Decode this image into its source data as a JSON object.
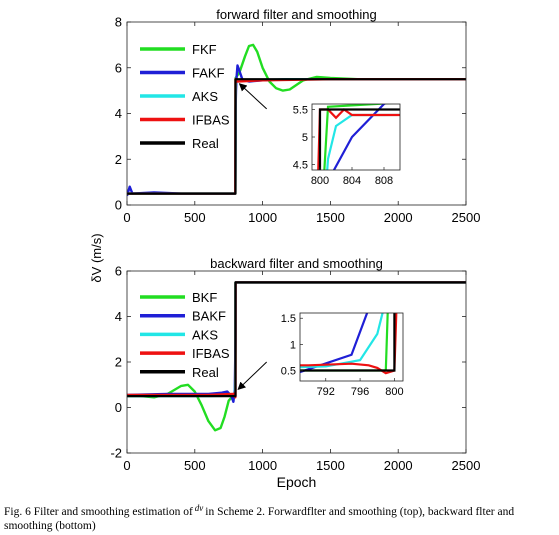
{
  "ylabel_shared": "δV (m/s)",
  "caption": {
    "before_symbol": "Fig. 6 Filter and smoothing estimation of",
    "symbol": "dv",
    "after_symbol": "in Scheme 2. Forwardflter and smoothing (top), backward flter and smoothing (bottom)"
  },
  "colors": {
    "filter": "#22dd22",
    "adaptive": "#1f1fd6",
    "smoother": "#22e6e6",
    "ifbas": "#ee1111",
    "real": "#000000"
  },
  "chart_data": [
    {
      "type": "line",
      "title": "forward filter and smoothing",
      "xlabel": "",
      "ylabel": "δV (m/s)",
      "xlim": [
        0,
        2500
      ],
      "ylim": [
        0,
        8
      ],
      "xticks": [
        "0",
        "500",
        "1000",
        "1500",
        "2000",
        "2500"
      ],
      "yticks": [
        "0",
        "2",
        "4",
        "6",
        "8"
      ],
      "grid": false,
      "legend": "top-left",
      "series": [
        {
          "name": "FKF",
          "color": "#22dd22",
          "x": [
            0,
            200,
            400,
            600,
            780,
            799,
            801,
            830,
            870,
            900,
            930,
            960,
            1000,
            1050,
            1100,
            1150,
            1200,
            1250,
            1300,
            1400,
            1500,
            1700,
            2000,
            2300,
            2500
          ],
          "y": [
            0.5,
            0.5,
            0.5,
            0.5,
            0.5,
            0.5,
            5.55,
            5.8,
            6.5,
            6.95,
            7.0,
            6.7,
            6.0,
            5.4,
            5.1,
            5.0,
            5.05,
            5.25,
            5.45,
            5.6,
            5.55,
            5.5,
            5.5,
            5.5,
            5.5
          ]
        },
        {
          "name": "FAKF",
          "color": "#1f1fd6",
          "x": [
            0,
            20,
            40,
            200,
            400,
            600,
            799,
            801,
            804,
            808,
            815,
            850,
            900,
            1000,
            1200,
            1500,
            2000,
            2500
          ],
          "y": [
            0.4,
            0.8,
            0.5,
            0.55,
            0.5,
            0.5,
            0.5,
            4.2,
            5.0,
            5.6,
            6.1,
            5.5,
            5.4,
            5.45,
            5.5,
            5.5,
            5.5,
            5.5
          ]
        },
        {
          "name": "AKS",
          "color": "#22e6e6",
          "x": [
            0,
            200,
            400,
            600,
            799,
            801,
            802,
            804,
            808,
            900,
            1200,
            1500,
            2000,
            2500
          ],
          "y": [
            0.5,
            0.5,
            0.5,
            0.5,
            0.5,
            4.6,
            5.2,
            5.4,
            5.4,
            5.45,
            5.5,
            5.5,
            5.5,
            5.5
          ]
        },
        {
          "name": "IFBAS",
          "color": "#ee1111",
          "x": [
            0,
            200,
            400,
            600,
            799,
            800,
            801,
            802,
            803,
            804,
            808,
            1000,
            1500,
            2000,
            2500
          ],
          "y": [
            0.5,
            0.5,
            0.5,
            0.5,
            0.5,
            5.5,
            5.5,
            5.35,
            5.5,
            5.4,
            5.4,
            5.45,
            5.5,
            5.5,
            5.5
          ]
        },
        {
          "name": "Real",
          "color": "#000000",
          "x": [
            0,
            800,
            800,
            2500
          ],
          "y": [
            0.5,
            0.5,
            5.5,
            5.5
          ]
        }
      ],
      "inset": {
        "xlim": [
          799,
          810
        ],
        "ylim": [
          4.4,
          5.6
        ],
        "xticks": [
          "800",
          "804",
          "808"
        ],
        "yticks": [
          "4.5",
          "5",
          "5.5"
        ]
      },
      "annotation": {
        "type": "arrow",
        "from": [
          1030,
          4.2
        ],
        "to": [
          830,
          5.3
        ]
      }
    },
    {
      "type": "line",
      "title": "backward filter and smoothing",
      "xlabel": "Epoch",
      "ylabel": "δV (m/s)",
      "xlim": [
        0,
        2500
      ],
      "ylim": [
        -2,
        6
      ],
      "xticks": [
        "0",
        "500",
        "1000",
        "1500",
        "2000",
        "2500"
      ],
      "yticks": [
        "-2",
        "0",
        "2",
        "4",
        "6"
      ],
      "grid": false,
      "legend": "top-left",
      "series": [
        {
          "name": "BKF",
          "color": "#22dd22",
          "x": [
            0,
            100,
            200,
            300,
            400,
            450,
            500,
            550,
            600,
            650,
            690,
            720,
            750,
            780,
            799,
            800,
            820,
            900,
            1200,
            1600,
            2000,
            2500
          ],
          "y": [
            0.5,
            0.5,
            0.45,
            0.6,
            0.95,
            1.0,
            0.7,
            0.1,
            -0.6,
            -1.0,
            -0.9,
            -0.4,
            0.3,
            0.5,
            0.5,
            5.5,
            5.5,
            5.5,
            5.5,
            5.5,
            5.5,
            5.5
          ]
        },
        {
          "name": "BAKF",
          "color": "#1f1fd6",
          "x": [
            0,
            300,
            600,
            700,
            740,
            770,
            785,
            795,
            800,
            801,
            820,
            1000,
            1500,
            2000,
            2500
          ],
          "y": [
            0.55,
            0.6,
            0.6,
            0.65,
            0.7,
            0.5,
            0.25,
            0.8,
            3.0,
            5.5,
            5.5,
            5.5,
            5.5,
            5.5,
            5.5
          ]
        },
        {
          "name": "AKS",
          "color": "#22e6e6",
          "x": [
            0,
            300,
            600,
            780,
            792,
            796,
            798,
            800,
            801,
            900,
            1500,
            2000,
            2500
          ],
          "y": [
            0.5,
            0.5,
            0.5,
            0.52,
            0.58,
            0.7,
            1.2,
            2.5,
            5.5,
            5.5,
            5.5,
            5.5,
            5.5
          ]
        },
        {
          "name": "IFBAS",
          "color": "#ee1111",
          "x": [
            0,
            300,
            600,
            780,
            790,
            795,
            797,
            798,
            799,
            800,
            801,
            1500,
            2500
          ],
          "y": [
            0.55,
            0.55,
            0.55,
            0.6,
            0.6,
            0.63,
            0.6,
            0.55,
            0.45,
            0.5,
            5.5,
            5.5,
            5.5
          ]
        },
        {
          "name": "Real",
          "color": "#000000",
          "x": [
            0,
            800,
            800,
            2500
          ],
          "y": [
            0.5,
            0.5,
            5.5,
            5.5
          ]
        }
      ],
      "inset": {
        "xlim": [
          789,
          801
        ],
        "ylim": [
          0.3,
          1.6
        ],
        "xticks": [
          "792",
          "796",
          "800"
        ],
        "yticks": [
          "0.5",
          "1",
          "1.5"
        ]
      },
      "annotation": {
        "type": "arrow",
        "from": [
          1030,
          2.0
        ],
        "to": [
          820,
          0.8
        ]
      }
    }
  ]
}
